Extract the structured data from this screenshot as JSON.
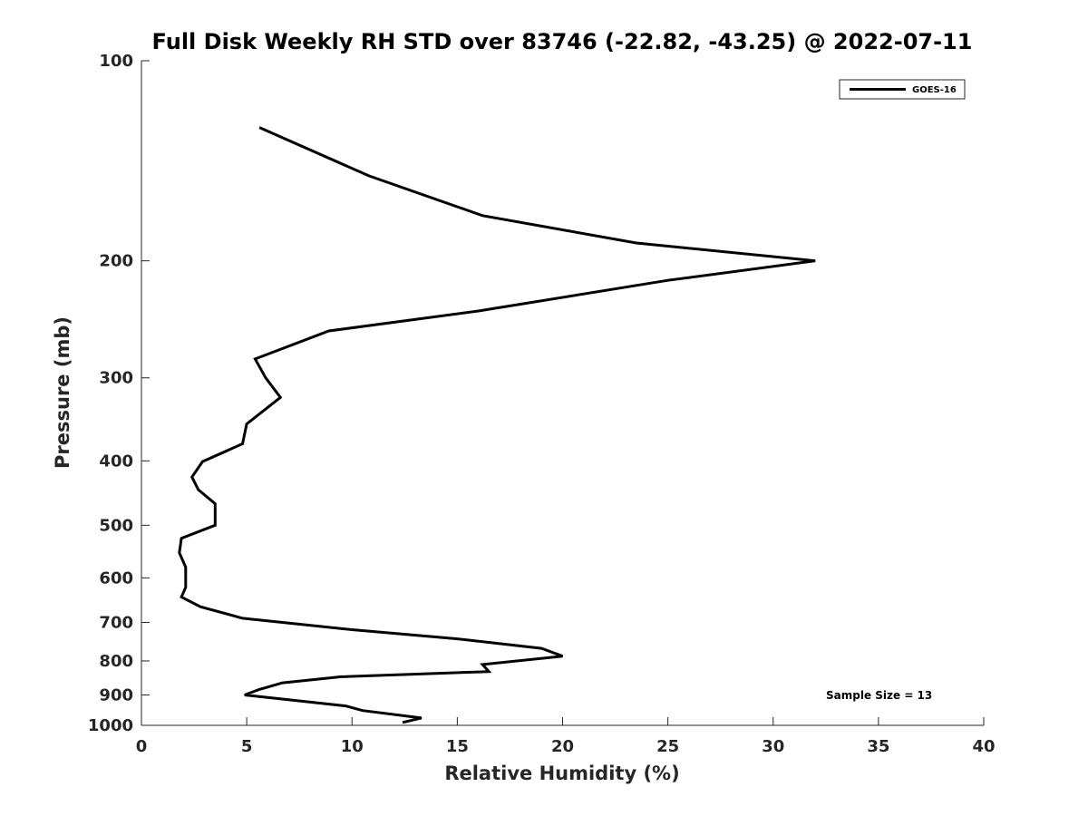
{
  "chart_data": {
    "type": "line",
    "title": "Full Disk Weekly RH STD over 83746 (-22.82, -43.25) @ 2022-07-11",
    "xlabel": "Relative Humidity (%)",
    "ylabel": "Pressure (mb)",
    "xlim": [
      0,
      40
    ],
    "ylim": [
      100,
      1000
    ],
    "yscale": "log",
    "y_reversed": true,
    "grid": false,
    "legend_position": "top-right",
    "xticks": [
      0,
      5,
      10,
      15,
      20,
      25,
      30,
      35,
      40
    ],
    "yticks": [
      100,
      200,
      300,
      400,
      500,
      600,
      700,
      800,
      900,
      1000
    ],
    "annotation": "Sample Size = 13",
    "series": [
      {
        "name": "GOES-16",
        "color": "#000000",
        "points": [
          {
            "x": 5.6,
            "y": 126
          },
          {
            "x": 10.8,
            "y": 149
          },
          {
            "x": 16.2,
            "y": 171
          },
          {
            "x": 23.5,
            "y": 188
          },
          {
            "x": 32.0,
            "y": 200
          },
          {
            "x": 25.0,
            "y": 214
          },
          {
            "x": 16.0,
            "y": 238
          },
          {
            "x": 8.9,
            "y": 255
          },
          {
            "x": 5.4,
            "y": 281
          },
          {
            "x": 5.9,
            "y": 300
          },
          {
            "x": 6.6,
            "y": 321
          },
          {
            "x": 5.0,
            "y": 352
          },
          {
            "x": 4.8,
            "y": 377
          },
          {
            "x": 2.9,
            "y": 401
          },
          {
            "x": 2.4,
            "y": 423
          },
          {
            "x": 2.7,
            "y": 442
          },
          {
            "x": 3.5,
            "y": 464
          },
          {
            "x": 3.5,
            "y": 486
          },
          {
            "x": 3.5,
            "y": 500
          },
          {
            "x": 1.9,
            "y": 523
          },
          {
            "x": 1.8,
            "y": 550
          },
          {
            "x": 2.1,
            "y": 578
          },
          {
            "x": 2.1,
            "y": 620
          },
          {
            "x": 1.9,
            "y": 641
          },
          {
            "x": 2.8,
            "y": 663
          },
          {
            "x": 4.8,
            "y": 690
          },
          {
            "x": 10.0,
            "y": 718
          },
          {
            "x": 15.0,
            "y": 741
          },
          {
            "x": 19.0,
            "y": 766
          },
          {
            "x": 20.0,
            "y": 787
          },
          {
            "x": 16.2,
            "y": 810
          },
          {
            "x": 16.5,
            "y": 830
          },
          {
            "x": 9.5,
            "y": 845
          },
          {
            "x": 6.7,
            "y": 863
          },
          {
            "x": 5.6,
            "y": 883
          },
          {
            "x": 4.9,
            "y": 900
          },
          {
            "x": 9.7,
            "y": 935
          },
          {
            "x": 10.5,
            "y": 950
          },
          {
            "x": 13.3,
            "y": 975
          },
          {
            "x": 12.4,
            "y": 990
          }
        ]
      }
    ]
  }
}
